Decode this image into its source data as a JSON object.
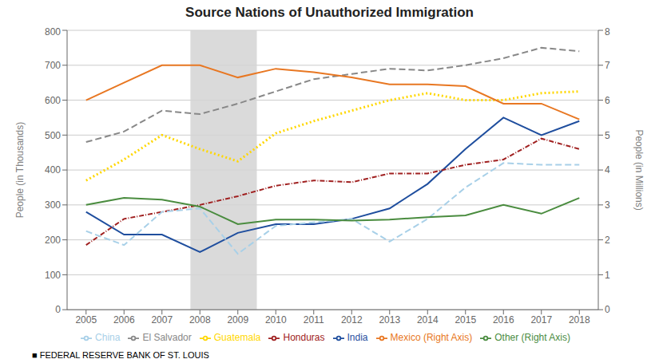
{
  "chart_data": {
    "type": "line",
    "title": "Source Nations of Unauthorized Immigration",
    "x": [
      2005,
      2006,
      2007,
      2008,
      2009,
      2010,
      2011,
      2012,
      2013,
      2014,
      2015,
      2016,
      2017,
      2018
    ],
    "xlim": [
      2004.5,
      2018.5
    ],
    "xticks": [
      2005,
      2006,
      2007,
      2008,
      2009,
      2010,
      2011,
      2012,
      2013,
      2014,
      2015,
      2016,
      2017,
      2018
    ],
    "ylim": [
      0,
      800
    ],
    "yticks": [
      0,
      100,
      200,
      300,
      400,
      500,
      600,
      700,
      800
    ],
    "y2lim": [
      0,
      8
    ],
    "y2ticks": [
      0,
      1,
      2,
      3,
      4,
      5,
      6,
      7,
      8
    ],
    "ylabel": "People (in Thousands)",
    "y2label": "People (in Millions)",
    "grid": true,
    "legend": "bottom",
    "shaded": {
      "x": [
        2007.75,
        2009.5
      ],
      "color": "#d3d3d3"
    },
    "footer": "■ FEDERAL RESERVE BANK OF ST. LOUIS",
    "series": [
      {
        "name": "El Salvador",
        "color": "#888888",
        "line_style": "dashed",
        "values": [
          480,
          510,
          570,
          560,
          590,
          625,
          660,
          675,
          690,
          685,
          700,
          720,
          750,
          740
        ]
      },
      {
        "name": "Guatemala",
        "color": "#FFD700",
        "line_style": "dotted",
        "values": [
          370,
          430,
          500,
          460,
          425,
          505,
          540,
          570,
          600,
          620,
          600,
          600,
          620,
          625
        ]
      },
      {
        "name": "India",
        "color": "#1F4E9E",
        "line_style": "solid",
        "values": [
          280,
          215,
          215,
          165,
          220,
          245,
          245,
          260,
          290,
          360,
          460,
          550,
          500,
          540
        ]
      },
      {
        "name": "Honduras",
        "color": "#A02020",
        "line_style": "dashdot",
        "values": [
          185,
          260,
          280,
          300,
          325,
          355,
          370,
          365,
          390,
          390,
          415,
          430,
          490,
          460
        ]
      },
      {
        "name": "China",
        "color": "#A8D0E8",
        "line_style": "dashed",
        "values": [
          225,
          185,
          280,
          290,
          160,
          240,
          250,
          260,
          195,
          260,
          350,
          420,
          415,
          415
        ]
      },
      {
        "name": "Mexico (Right Axis)",
        "color": "#E87722",
        "line_style": "solid",
        "axis": "y2",
        "values": [
          6.0,
          6.5,
          7.0,
          7.0,
          6.65,
          6.9,
          6.8,
          6.65,
          6.45,
          6.45,
          6.4,
          5.9,
          5.9,
          5.45
        ]
      },
      {
        "name": "Other (Right Axis)",
        "color": "#4A8C3F",
        "line_style": "solid",
        "axis": "y2",
        "values": [
          3.0,
          3.2,
          3.15,
          2.95,
          2.45,
          2.58,
          2.58,
          2.55,
          2.58,
          2.65,
          2.7,
          3.0,
          2.75,
          3.2
        ]
      }
    ]
  }
}
